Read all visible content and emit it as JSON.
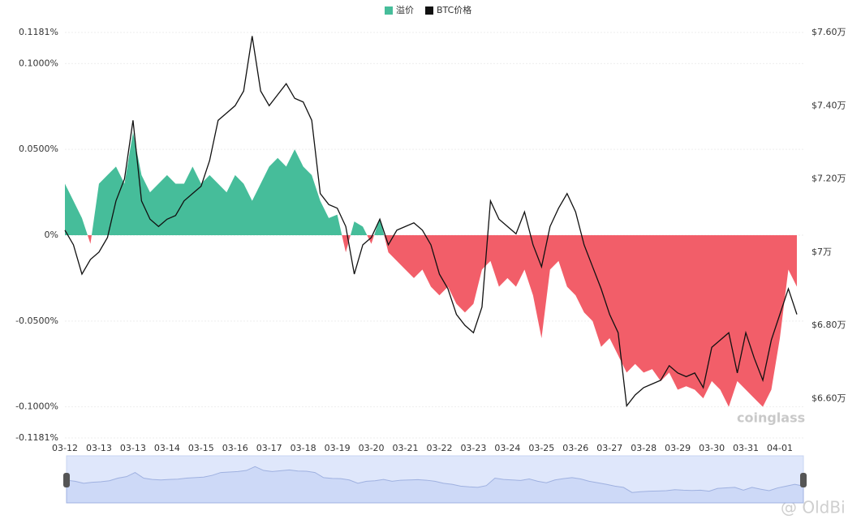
{
  "chart_data": {
    "type": "area-line",
    "categories": [
      "03-12",
      null,
      null,
      null,
      "03-13",
      null,
      null,
      null,
      "03-13",
      null,
      null,
      null,
      "03-14",
      null,
      null,
      null,
      "03-15",
      null,
      null,
      null,
      "03-16",
      null,
      null,
      null,
      "03-17",
      null,
      null,
      null,
      "03-18",
      null,
      null,
      null,
      "03-19",
      null,
      null,
      null,
      "03-20",
      null,
      null,
      null,
      "03-21",
      null,
      null,
      null,
      "03-22",
      null,
      null,
      null,
      "03-23",
      null,
      null,
      null,
      "03-24",
      null,
      null,
      null,
      "03-25",
      null,
      null,
      null,
      "03-26",
      null,
      null,
      null,
      "03-27",
      null,
      null,
      null,
      "03-28",
      null,
      null,
      null,
      "03-29",
      null,
      null,
      null,
      "03-30",
      null,
      null,
      null,
      "03-31",
      null,
      null,
      null,
      "04-01",
      null,
      null
    ],
    "series": [
      {
        "name": "溢价",
        "color": "#46bd9a",
        "negative_color": "#f25e69",
        "axis": "y",
        "values": [
          0.03,
          0.02,
          0.01,
          -0.005,
          0.03,
          0.035,
          0.04,
          0.03,
          0.06,
          0.035,
          0.025,
          0.03,
          0.035,
          0.03,
          0.03,
          0.04,
          0.03,
          0.035,
          0.03,
          0.025,
          0.035,
          0.03,
          0.02,
          0.03,
          0.04,
          0.045,
          0.04,
          0.05,
          0.04,
          0.035,
          0.02,
          0.01,
          0.012,
          -0.01,
          0.008,
          0.005,
          -0.005,
          0.01,
          -0.01,
          -0.015,
          -0.02,
          -0.025,
          -0.02,
          -0.03,
          -0.035,
          -0.03,
          -0.04,
          -0.045,
          -0.04,
          -0.02,
          -0.015,
          -0.03,
          -0.025,
          -0.03,
          -0.02,
          -0.035,
          -0.06,
          -0.02,
          -0.015,
          -0.03,
          -0.035,
          -0.045,
          -0.05,
          -0.065,
          -0.06,
          -0.07,
          -0.08,
          -0.075,
          -0.08,
          -0.078,
          -0.085,
          -0.08,
          -0.09,
          -0.088,
          -0.09,
          -0.095,
          -0.085,
          -0.09,
          -0.1,
          -0.085,
          -0.09,
          -0.095,
          -0.1,
          -0.09,
          -0.06,
          -0.02,
          -0.03
        ]
      },
      {
        "name": "BTC价格",
        "color": "#111111",
        "axis": "y2",
        "values": [
          7.06,
          7.02,
          6.94,
          6.98,
          7.0,
          7.04,
          7.14,
          7.2,
          7.36,
          7.14,
          7.09,
          7.07,
          7.09,
          7.1,
          7.14,
          7.16,
          7.18,
          7.25,
          7.36,
          7.38,
          7.4,
          7.44,
          7.59,
          7.44,
          7.4,
          7.43,
          7.46,
          7.42,
          7.41,
          7.36,
          7.16,
          7.13,
          7.12,
          7.07,
          6.94,
          7.02,
          7.04,
          7.09,
          7.02,
          7.06,
          7.07,
          7.08,
          7.06,
          7.02,
          6.94,
          6.9,
          6.83,
          6.8,
          6.78,
          6.85,
          7.14,
          7.09,
          7.07,
          7.05,
          7.11,
          7.02,
          6.96,
          7.07,
          7.12,
          7.16,
          7.11,
          7.02,
          6.96,
          6.9,
          6.83,
          6.78,
          6.58,
          6.61,
          6.63,
          6.64,
          6.65,
          6.69,
          6.67,
          6.66,
          6.67,
          6.63,
          6.74,
          6.76,
          6.78,
          6.67,
          6.78,
          6.71,
          6.65,
          6.76,
          6.83,
          6.9,
          6.83
        ]
      }
    ],
    "ylim": [
      -0.1181,
      0.1181
    ],
    "yticks": [
      {
        "value": 0.1181,
        "label": "0.1181%"
      },
      {
        "value": 0.1,
        "label": "0.1000%"
      },
      {
        "value": 0.05,
        "label": "0.0500%"
      },
      {
        "value": 0,
        "label": "0%"
      },
      {
        "value": -0.05,
        "label": "-0.0500%"
      },
      {
        "value": -0.1,
        "label": "-0.1000%"
      },
      {
        "value": -0.1181,
        "label": "-0.1181%"
      }
    ],
    "y2lim": [
      6.4925,
      7.6
    ],
    "y2ticks": [
      {
        "value": 7.6,
        "label": "$7.60万"
      },
      {
        "value": 7.4,
        "label": "$7.40万"
      },
      {
        "value": 7.2,
        "label": "$7.20万"
      },
      {
        "value": 7,
        "label": "$7万"
      },
      {
        "value": 6.8,
        "label": "$6.80万"
      },
      {
        "value": 6.6,
        "label": "$6.60万"
      }
    ],
    "grid": true,
    "legend": "top",
    "watermark": "coinglass",
    "credit": "@ OldBi"
  }
}
